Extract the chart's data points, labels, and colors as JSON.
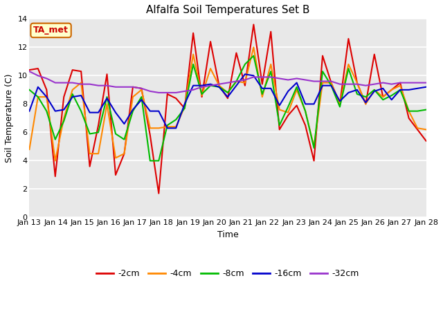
{
  "title": "Alfalfa Soil Temperatures Set B",
  "xlabel": "Time",
  "ylabel": "Soil Temperature (C)",
  "xlim": [
    0,
    15
  ],
  "ylim": [
    0,
    14
  ],
  "yticks": [
    0,
    2,
    4,
    6,
    8,
    10,
    12,
    14
  ],
  "xtick_labels": [
    "Jan 13",
    "Jan 14",
    "Jan 15",
    "Jan 16",
    "Jan 17",
    "Jan 18",
    "Jan 19",
    "Jan 20",
    "Jan 21",
    "Jan 22",
    "Jan 23",
    "Jan 24",
    "Jan 25",
    "Jan 26",
    "Jan 27",
    "Jan 28"
  ],
  "fig_bg_color": "#ffffff",
  "plot_bg_color": "#e8e8e8",
  "grid_color": "#ffffff",
  "annotation_text": "TA_met",
  "annotation_color": "#cc0000",
  "annotation_bg": "#ffffcc",
  "annotation_border": "#cc6600",
  "colors": {
    "-2cm": "#dd0000",
    "-4cm": "#ff8800",
    "-8cm": "#00bb00",
    "-16cm": "#0000cc",
    "-32cm": "#9933cc"
  },
  "series": {
    "-2cm": [
      10.4,
      10.5,
      9.0,
      2.9,
      8.5,
      10.4,
      10.3,
      3.6,
      6.5,
      10.1,
      3.0,
      4.5,
      9.2,
      9.1,
      5.8,
      1.7,
      8.7,
      8.4,
      7.7,
      13.0,
      8.5,
      12.4,
      9.3,
      8.4,
      11.6,
      9.3,
      13.6,
      9.4,
      13.1,
      6.2,
      7.2,
      7.9,
      6.5,
      4.0,
      11.4,
      9.5,
      8.0,
      12.6,
      9.5,
      8.0,
      11.5,
      8.5,
      9.0,
      9.5,
      7.0,
      6.2,
      5.4
    ],
    "-4cm": [
      4.8,
      8.5,
      8.5,
      4.0,
      7.0,
      9.0,
      9.5,
      4.5,
      4.5,
      8.0,
      4.2,
      4.5,
      8.5,
      9.0,
      6.3,
      6.3,
      6.4,
      6.4,
      7.8,
      11.5,
      8.6,
      10.5,
      9.3,
      8.8,
      9.6,
      9.5,
      12.0,
      8.5,
      10.8,
      7.6,
      7.4,
      9.0,
      7.5,
      5.0,
      9.5,
      9.5,
      8.0,
      10.8,
      9.5,
      8.0,
      9.0,
      8.5,
      9.0,
      9.3,
      7.5,
      6.3,
      6.2
    ],
    "-8cm": [
      9.0,
      8.5,
      7.5,
      5.5,
      6.8,
      8.7,
      7.5,
      5.9,
      6.0,
      8.5,
      5.9,
      5.5,
      7.5,
      8.5,
      4.0,
      4.0,
      6.5,
      6.9,
      7.7,
      10.8,
      8.7,
      9.3,
      9.2,
      8.8,
      9.6,
      10.8,
      11.4,
      8.7,
      10.3,
      6.5,
      7.8,
      9.2,
      7.5,
      4.9,
      10.3,
      9.3,
      7.8,
      10.5,
      8.7,
      8.5,
      9.0,
      8.3,
      8.6,
      9.0,
      7.5,
      7.5,
      7.6
    ],
    "-16cm": [
      7.5,
      9.2,
      8.5,
      7.5,
      7.6,
      8.5,
      8.6,
      7.4,
      7.4,
      8.4,
      7.4,
      6.6,
      7.6,
      8.3,
      7.5,
      7.5,
      6.3,
      6.3,
      8.0,
      9.3,
      9.3,
      9.4,
      9.2,
      8.5,
      9.3,
      10.1,
      10.0,
      9.1,
      9.1,
      7.9,
      8.9,
      9.5,
      8.0,
      8.0,
      9.3,
      9.3,
      8.2,
      8.8,
      9.0,
      8.1,
      8.9,
      9.1,
      8.3,
      9.0,
      9.0,
      9.1,
      9.2
    ],
    "-32cm": [
      10.3,
      10.0,
      9.8,
      9.5,
      9.5,
      9.5,
      9.4,
      9.4,
      9.3,
      9.3,
      9.2,
      9.2,
      9.2,
      9.1,
      8.9,
      8.8,
      8.8,
      8.8,
      8.9,
      9.0,
      9.2,
      9.3,
      9.4,
      9.5,
      9.6,
      9.7,
      9.9,
      9.9,
      9.9,
      9.8,
      9.7,
      9.8,
      9.7,
      9.6,
      9.6,
      9.6,
      9.4,
      9.4,
      9.4,
      9.3,
      9.4,
      9.5,
      9.4,
      9.5,
      9.5,
      9.5,
      9.5
    ]
  },
  "linewidth": 1.5,
  "title_fontsize": 11,
  "label_fontsize": 9,
  "tick_fontsize": 8,
  "legend_fontsize": 9
}
